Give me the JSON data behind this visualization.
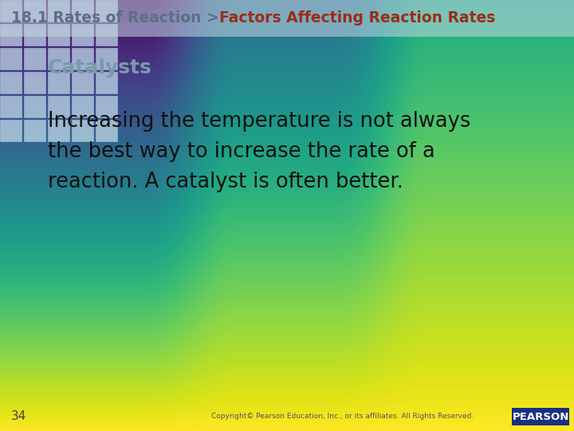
{
  "header_left": "18.1 Rates of Reaction > ",
  "header_right": "Factors Affecting Reaction Rates",
  "section_title": "Catalysts",
  "body_line1": "Increasing the temperature is not always",
  "body_line2": "the best way to increase the rate of a",
  "body_line3": "reaction. A catalyst is often better.",
  "page_number": "34",
  "copyright_text": "Copyright© Pearson Education, Inc., or its affiliates. All Rights Reserved.",
  "pearson_label": "PEARSON",
  "header_left_color": "#5a7085",
  "header_right_color": "#9b2c1a",
  "section_title_color": "#7a9aaa",
  "body_text_color": "#111111",
  "page_num_color": "#444444",
  "copyright_color": "#555555",
  "pearson_bg": "#1a3080",
  "pearson_text_color": "#ffffff",
  "tile_color": "#c0d8e8",
  "tile_border_color": "#a8c5d8",
  "bg_top": "#c8dde8",
  "bg_bottom": "#ffffff"
}
